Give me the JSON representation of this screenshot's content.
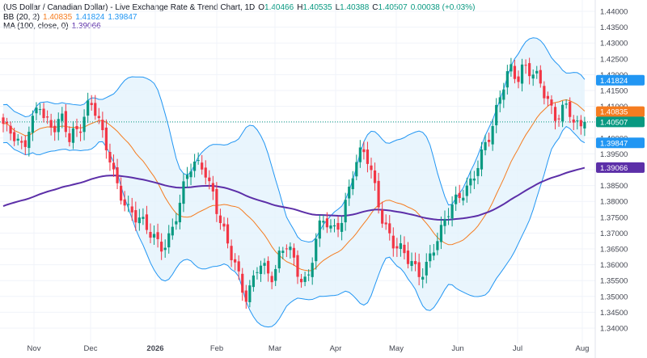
{
  "legend": {
    "title": "(US Dollar / Canadian Dollar) - Live Exchange Rate & Trend Chart, 1D",
    "open_label": "O",
    "open": "1.40466",
    "high_label": "H",
    "high": "1.40535",
    "low_label": "L",
    "low": "1.40388",
    "close_label": "C",
    "close": "1.40507",
    "change": "0.00038 (+0.03%)",
    "bb_label": "BB (20, 2)",
    "bb_basis": "1.40835",
    "bb_upper": "1.41824",
    "bb_lower": "1.39847",
    "ma_label": "MA (100, close, 0)",
    "ma_value": "1.39066"
  },
  "colors": {
    "up": "#089981",
    "down": "#f23645",
    "bb_basis": "#f57c20",
    "bb_band": "#2196f3",
    "bb_fill": "#e3f2fd",
    "ma": "#5c2fa8",
    "close_badge": "#089981",
    "grid": "#f0f3fa"
  },
  "chart_data": {
    "type": "candlestick",
    "x_labels": [
      "Nov",
      "Dec",
      "2026",
      "Feb",
      "Mar",
      "Apr",
      "May",
      "Jun",
      "Jul",
      "Aug"
    ],
    "y_ticks": [
      "1.44000",
      "1.43500",
      "1.43000",
      "1.42500",
      "1.42000",
      "1.41500",
      "1.41000",
      "1.40500",
      "1.40000",
      "1.39500",
      "1.39000",
      "1.38500",
      "1.38000",
      "1.37500",
      "1.37000",
      "1.36500",
      "1.36000",
      "1.35500",
      "1.35000",
      "1.34500",
      "1.34000"
    ],
    "ylim": [
      1.34,
      1.44
    ],
    "price_badges": [
      {
        "name": "bb-upper",
        "value": "1.41824",
        "color": "#2196f3"
      },
      {
        "name": "bb-basis",
        "value": "1.40835",
        "color": "#f57c20"
      },
      {
        "name": "last-close",
        "value": "1.40507",
        "color": "#089981"
      },
      {
        "name": "bb-lower",
        "value": "1.39847",
        "color": "#2196f3"
      },
      {
        "name": "ma",
        "value": "1.39066",
        "color": "#5c2fa8"
      }
    ],
    "close_path": [
      1.4045,
      1.402,
      1.4005,
      1.399,
      1.397,
      1.396,
      1.403,
      1.406,
      1.41,
      1.412,
      1.406,
      1.404,
      1.402,
      1.403,
      1.406,
      1.403,
      1.4,
      1.4025,
      1.403,
      1.405,
      1.41,
      1.411,
      1.409,
      1.406,
      1.4,
      1.396,
      1.393,
      1.388,
      1.384,
      1.382,
      1.379,
      1.377,
      1.375,
      1.374,
      1.372,
      1.37,
      1.369,
      1.368,
      1.366,
      1.367,
      1.369,
      1.372,
      1.376,
      1.38,
      1.385,
      1.389,
      1.391,
      1.391,
      1.392,
      1.39,
      1.386,
      1.383,
      1.377,
      1.372,
      1.368,
      1.363,
      1.36,
      1.356,
      1.352,
      1.35,
      1.354,
      1.358,
      1.362,
      1.36,
      1.357,
      1.355,
      1.357,
      1.362,
      1.365,
      1.367,
      1.364,
      1.36,
      1.357,
      1.355,
      1.356,
      1.362,
      1.368,
      1.372,
      1.374,
      1.372,
      1.371,
      1.373,
      1.375,
      1.38,
      1.385,
      1.39,
      1.393,
      1.395,
      1.394,
      1.39,
      1.385,
      1.38,
      1.375,
      1.372,
      1.369,
      1.366,
      1.365,
      1.363,
      1.361,
      1.36,
      1.358,
      1.357,
      1.359,
      1.362,
      1.365,
      1.368,
      1.37,
      1.373,
      1.376,
      1.378,
      1.38,
      1.382,
      1.384,
      1.386,
      1.389,
      1.392,
      1.395,
      1.398,
      1.4,
      1.404,
      1.41,
      1.415,
      1.42,
      1.423,
      1.421,
      1.42,
      1.423,
      1.422,
      1.42,
      1.419,
      1.417,
      1.414,
      1.412,
      1.409,
      1.407,
      1.409,
      1.411,
      1.41,
      1.406,
      1.403,
      1.402,
      1.4045
    ]
  }
}
